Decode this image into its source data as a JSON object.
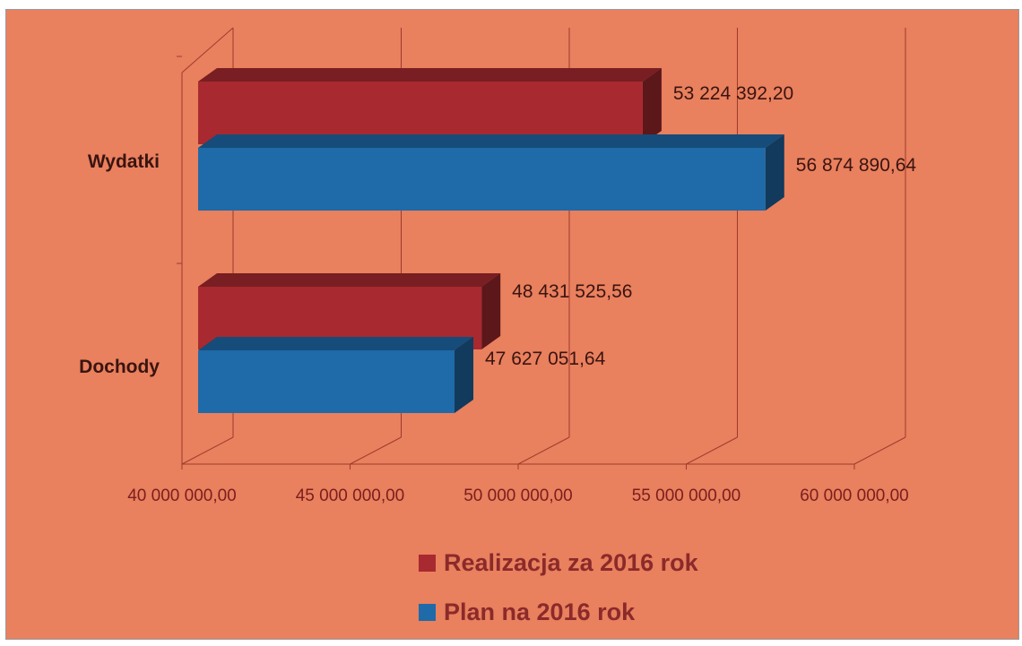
{
  "chart_data": {
    "type": "bar",
    "orientation": "horizontal",
    "style": "3d",
    "categories": [
      "Wydatki",
      "Dochody"
    ],
    "series": [
      {
        "name": "Realizacja za 2016 rok",
        "values": [
          53224392.2,
          48431525.56
        ],
        "labels": [
          "53 224 392,20",
          "48 431 525,56"
        ],
        "color": "#A8292F"
      },
      {
        "name": "Plan na 2016 rok",
        "values": [
          56874890.64,
          47627051.64
        ],
        "labels": [
          "56 874 890,64",
          "47 627 051,64"
        ],
        "color": "#1F6AA8"
      }
    ],
    "x_ticks": [
      40000000,
      45000000,
      50000000,
      55000000,
      60000000
    ],
    "x_tick_labels": [
      "40 000 000,00",
      "45 000 000,00",
      "50 000 000,00",
      "55 000 000,00",
      "60 000 000,00"
    ],
    "xlim": [
      40000000,
      60000000
    ],
    "grid": true,
    "legend_position": "bottom",
    "background": "#E9805E",
    "title": "",
    "xlabel": "",
    "ylabel": ""
  }
}
